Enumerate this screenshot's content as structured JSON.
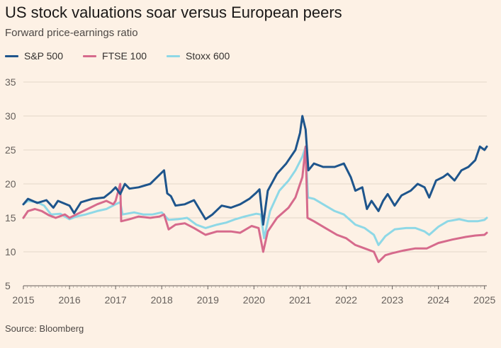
{
  "header": {
    "title": "US stock valuations soar versus European peers",
    "subtitle": "Forward price-earnings ratio"
  },
  "legend": [
    {
      "label": "S&P 500",
      "color": "#1e558c"
    },
    {
      "label": "FTSE 100",
      "color": "#d66a8c"
    },
    {
      "label": "Stoxx 600",
      "color": "#8ed8e6"
    }
  ],
  "footer": {
    "source": "Source: Bloomberg"
  },
  "chart_data": {
    "type": "line",
    "title": "US stock valuations soar versus European peers",
    "subtitle": "Forward price-earnings ratio",
    "xlabel": "",
    "ylabel": "",
    "xlim": [
      2015,
      2025.05
    ],
    "ylim": [
      5,
      35
    ],
    "yticks": [
      5,
      10,
      15,
      20,
      25,
      30,
      35
    ],
    "xticks": [
      2015,
      2016,
      2017,
      2018,
      2019,
      2020,
      2021,
      2022,
      2023,
      2024,
      2025
    ],
    "grid": "horizontal",
    "legend_position": "top-left",
    "series": [
      {
        "name": "S&P 500",
        "color": "#1e558c",
        "points": [
          [
            2015,
            17
          ],
          [
            2015.1,
            17.8
          ],
          [
            2015.3,
            17.2
          ],
          [
            2015.5,
            17.6
          ],
          [
            2015.65,
            16.5
          ],
          [
            2015.75,
            17.5
          ],
          [
            2016,
            16.8
          ],
          [
            2016.1,
            15.7
          ],
          [
            2016.25,
            17.3
          ],
          [
            2016.5,
            17.8
          ],
          [
            2016.75,
            18
          ],
          [
            2016.9,
            18.8
          ],
          [
            2017,
            19.5
          ],
          [
            2017.1,
            18.5
          ],
          [
            2017.2,
            20
          ],
          [
            2017.3,
            19.3
          ],
          [
            2017.5,
            19.5
          ],
          [
            2017.75,
            20
          ],
          [
            2017.9,
            21
          ],
          [
            2018.05,
            22
          ],
          [
            2018.12,
            18.6
          ],
          [
            2018.2,
            18.2
          ],
          [
            2018.3,
            16.8
          ],
          [
            2018.5,
            17
          ],
          [
            2018.7,
            17.6
          ],
          [
            2018.95,
            14.8
          ],
          [
            2019.1,
            15.5
          ],
          [
            2019.3,
            16.8
          ],
          [
            2019.5,
            16.5
          ],
          [
            2019.7,
            17
          ],
          [
            2019.9,
            17.8
          ],
          [
            2020.05,
            18.7
          ],
          [
            2020.12,
            19.2
          ],
          [
            2020.2,
            14
          ],
          [
            2020.3,
            19
          ],
          [
            2020.5,
            21.5
          ],
          [
            2020.7,
            23
          ],
          [
            2020.9,
            25
          ],
          [
            2021,
            27.5
          ],
          [
            2021.05,
            30
          ],
          [
            2021.12,
            28
          ],
          [
            2021.18,
            22
          ],
          [
            2021.3,
            23
          ],
          [
            2021.5,
            22.5
          ],
          [
            2021.75,
            22.5
          ],
          [
            2021.95,
            23
          ],
          [
            2022.1,
            21
          ],
          [
            2022.2,
            19
          ],
          [
            2022.35,
            19.5
          ],
          [
            2022.45,
            16.3
          ],
          [
            2022.55,
            17.5
          ],
          [
            2022.7,
            16
          ],
          [
            2022.8,
            17.5
          ],
          [
            2022.9,
            18.5
          ],
          [
            2023.05,
            16.8
          ],
          [
            2023.2,
            18.3
          ],
          [
            2023.4,
            19
          ],
          [
            2023.55,
            20
          ],
          [
            2023.7,
            19.5
          ],
          [
            2023.8,
            18
          ],
          [
            2023.95,
            20.5
          ],
          [
            2024.1,
            21
          ],
          [
            2024.2,
            21.5
          ],
          [
            2024.35,
            20.5
          ],
          [
            2024.5,
            22
          ],
          [
            2024.65,
            22.5
          ],
          [
            2024.8,
            23.5
          ],
          [
            2024.9,
            25.5
          ],
          [
            2025,
            25
          ],
          [
            2025.05,
            25.5
          ]
        ]
      },
      {
        "name": "FTSE 100",
        "color": "#d66a8c",
        "points": [
          [
            2015,
            15
          ],
          [
            2015.1,
            16
          ],
          [
            2015.25,
            16.3
          ],
          [
            2015.4,
            16
          ],
          [
            2015.55,
            15.4
          ],
          [
            2015.7,
            15
          ],
          [
            2015.9,
            15.5
          ],
          [
            2016,
            15
          ],
          [
            2016.15,
            15.5
          ],
          [
            2016.3,
            16
          ],
          [
            2016.45,
            16.5
          ],
          [
            2016.6,
            17
          ],
          [
            2016.8,
            17.5
          ],
          [
            2016.95,
            17
          ],
          [
            2017,
            17.5
          ],
          [
            2017.1,
            20
          ],
          [
            2017.12,
            14.5
          ],
          [
            2017.3,
            14.8
          ],
          [
            2017.5,
            15.2
          ],
          [
            2017.75,
            15
          ],
          [
            2017.95,
            15.2
          ],
          [
            2018.05,
            15.5
          ],
          [
            2018.15,
            13.3
          ],
          [
            2018.3,
            14
          ],
          [
            2018.5,
            14.2
          ],
          [
            2018.7,
            13.5
          ],
          [
            2018.95,
            12.5
          ],
          [
            2019.2,
            13
          ],
          [
            2019.5,
            13
          ],
          [
            2019.7,
            12.8
          ],
          [
            2019.95,
            13.8
          ],
          [
            2020.1,
            13.5
          ],
          [
            2020.2,
            10
          ],
          [
            2020.3,
            13
          ],
          [
            2020.5,
            15
          ],
          [
            2020.75,
            16.5
          ],
          [
            2020.9,
            18
          ],
          [
            2021.05,
            21
          ],
          [
            2021.12,
            25.5
          ],
          [
            2021.16,
            15
          ],
          [
            2021.3,
            14.5
          ],
          [
            2021.55,
            13.5
          ],
          [
            2021.8,
            12.5
          ],
          [
            2022,
            12
          ],
          [
            2022.2,
            11
          ],
          [
            2022.4,
            10.5
          ],
          [
            2022.6,
            10
          ],
          [
            2022.7,
            8.5
          ],
          [
            2022.85,
            9.5
          ],
          [
            2023,
            9.8
          ],
          [
            2023.25,
            10.2
          ],
          [
            2023.5,
            10.5
          ],
          [
            2023.75,
            10.5
          ],
          [
            2024,
            11.3
          ],
          [
            2024.3,
            11.8
          ],
          [
            2024.6,
            12.2
          ],
          [
            2024.8,
            12.4
          ],
          [
            2025,
            12.5
          ],
          [
            2025.05,
            12.8
          ]
        ]
      },
      {
        "name": "Stoxx 600",
        "color": "#8ed8e6",
        "points": [
          [
            2015,
            17
          ],
          [
            2015.1,
            17.5
          ],
          [
            2015.3,
            17.3
          ],
          [
            2015.45,
            16.8
          ],
          [
            2015.6,
            15.5
          ],
          [
            2015.8,
            15.6
          ],
          [
            2016,
            14.8
          ],
          [
            2016.15,
            15.2
          ],
          [
            2016.35,
            15.5
          ],
          [
            2016.6,
            16
          ],
          [
            2016.8,
            16.3
          ],
          [
            2017,
            17
          ],
          [
            2017.1,
            17.3
          ],
          [
            2017.15,
            15.5
          ],
          [
            2017.4,
            15.8
          ],
          [
            2017.6,
            15.5
          ],
          [
            2017.8,
            15.5
          ],
          [
            2018,
            15.8
          ],
          [
            2018.15,
            14.7
          ],
          [
            2018.35,
            14.8
          ],
          [
            2018.55,
            15
          ],
          [
            2018.75,
            14
          ],
          [
            2018.95,
            13.5
          ],
          [
            2019.2,
            14
          ],
          [
            2019.4,
            14.3
          ],
          [
            2019.6,
            14.8
          ],
          [
            2019.8,
            15.2
          ],
          [
            2020.05,
            15.6
          ],
          [
            2020.15,
            15.5
          ],
          [
            2020.22,
            12
          ],
          [
            2020.35,
            16
          ],
          [
            2020.55,
            19
          ],
          [
            2020.75,
            20.5
          ],
          [
            2020.9,
            22
          ],
          [
            2021.05,
            24
          ],
          [
            2021.12,
            25.5
          ],
          [
            2021.17,
            18
          ],
          [
            2021.3,
            17.8
          ],
          [
            2021.5,
            17
          ],
          [
            2021.75,
            16
          ],
          [
            2021.95,
            15.5
          ],
          [
            2022.2,
            14
          ],
          [
            2022.4,
            13.5
          ],
          [
            2022.6,
            12.5
          ],
          [
            2022.7,
            11
          ],
          [
            2022.85,
            12.3
          ],
          [
            2023.05,
            13.3
          ],
          [
            2023.3,
            13.5
          ],
          [
            2023.5,
            13.5
          ],
          [
            2023.7,
            13
          ],
          [
            2023.8,
            12.5
          ],
          [
            2024,
            13.7
          ],
          [
            2024.2,
            14.5
          ],
          [
            2024.45,
            14.8
          ],
          [
            2024.65,
            14.5
          ],
          [
            2024.85,
            14.5
          ],
          [
            2025,
            14.7
          ],
          [
            2025.05,
            15
          ]
        ]
      }
    ]
  }
}
